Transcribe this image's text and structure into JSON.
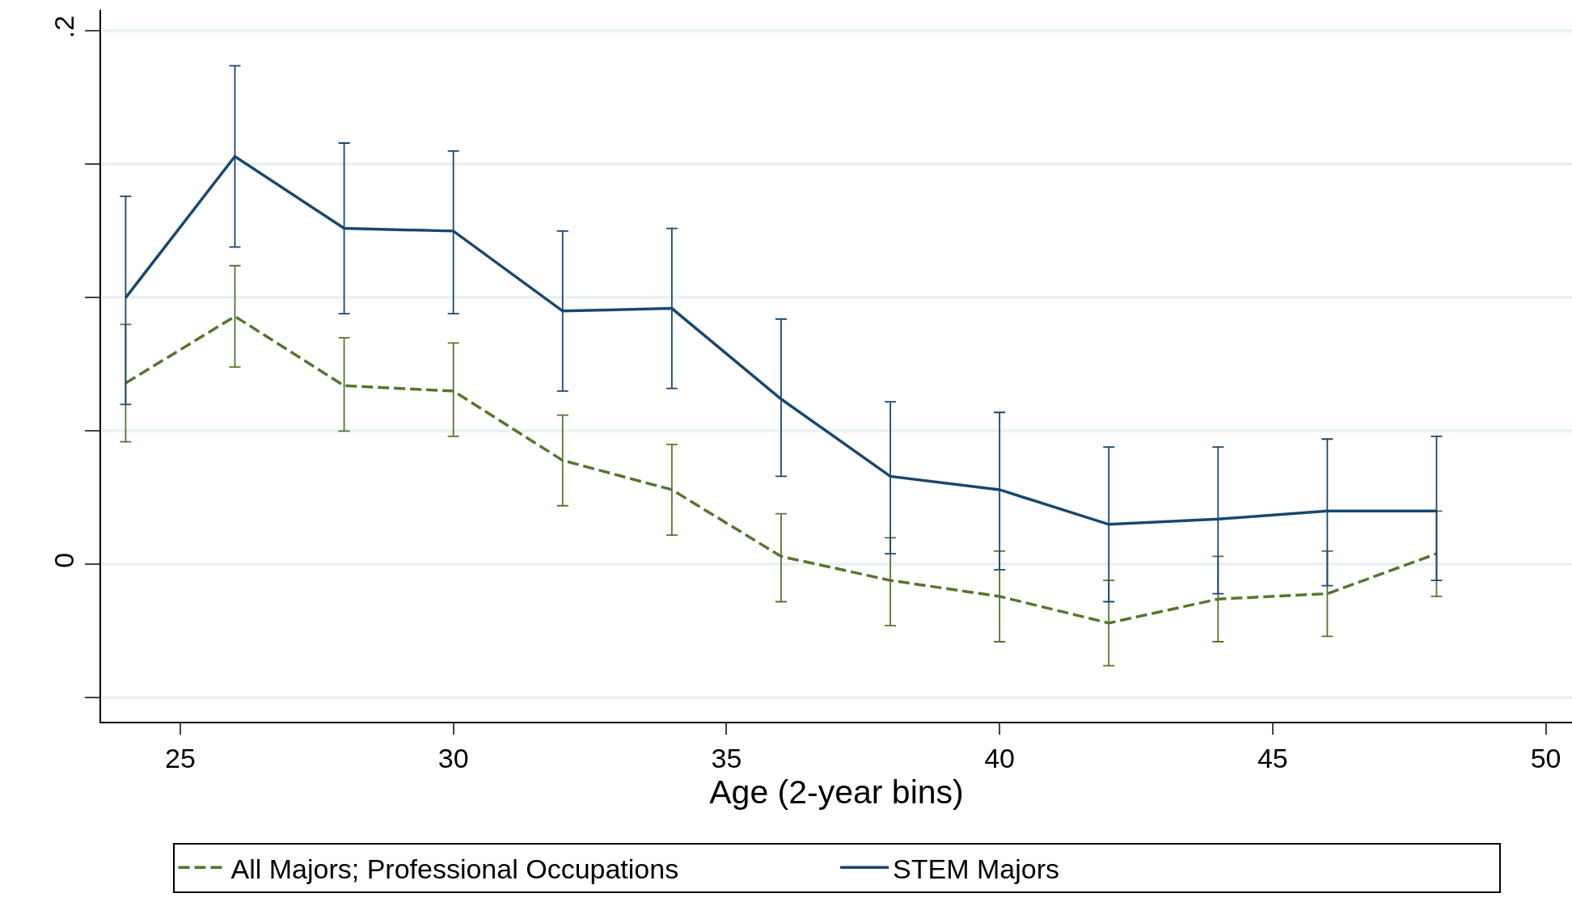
{
  "chart_data": {
    "type": "line",
    "xlabel": "Age (2-year bins)",
    "x": [
      24,
      26,
      28,
      30,
      32,
      34,
      36,
      38,
      40,
      42,
      44,
      46,
      48
    ],
    "series": [
      {
        "name": "All Majors; Professional Occupations",
        "color": "#55752f",
        "line_style": "dashed",
        "values": [
          0.068,
          0.093,
          0.067,
          0.065,
          0.039,
          0.028,
          0.003,
          -0.006,
          -0.012,
          -0.022,
          -0.013,
          -0.011,
          0.004
        ],
        "errors": [
          [
            0.046,
            0.09
          ],
          [
            0.074,
            0.112
          ],
          [
            0.05,
            0.085
          ],
          [
            0.048,
            0.083
          ],
          [
            0.022,
            0.056
          ],
          [
            0.011,
            0.045
          ],
          [
            -0.014,
            0.019
          ],
          [
            -0.023,
            0.01
          ],
          [
            -0.029,
            0.005
          ],
          [
            -0.038,
            -0.006
          ],
          [
            -0.029,
            0.003
          ],
          [
            -0.027,
            0.005
          ],
          [
            -0.012,
            0.02
          ]
        ]
      },
      {
        "name": "STEM Majors",
        "color": "#1a476f",
        "line_style": "solid",
        "values": [
          0.1,
          0.153,
          0.126,
          0.125,
          0.095,
          0.096,
          0.062,
          0.033,
          0.028,
          0.015,
          0.017,
          0.02,
          0.02
        ],
        "errors": [
          [
            0.06,
            0.138
          ],
          [
            0.119,
            0.187
          ],
          [
            0.094,
            0.158
          ],
          [
            0.094,
            0.155
          ],
          [
            0.065,
            0.125
          ],
          [
            0.066,
            0.126
          ],
          [
            0.033,
            0.092
          ],
          [
            0.004,
            0.061
          ],
          [
            -0.002,
            0.057
          ],
          [
            -0.014,
            0.044
          ],
          [
            -0.011,
            0.044
          ],
          [
            -0.008,
            0.047
          ],
          [
            -0.006,
            0.048
          ]
        ]
      }
    ],
    "xlim": [
      23.55,
      50.48
    ],
    "xticks": [
      25,
      30,
      35,
      40,
      45,
      50
    ],
    "ylim": [
      -0.059,
      0.208
    ],
    "yticks": [
      {
        "value": -0.05,
        "label": null
      },
      0,
      {
        "value": 0.05,
        "label": null
      },
      {
        "value": 0.1,
        "label": null
      },
      {
        "value": 0.15,
        "label": null
      },
      {
        "value": 0.2,
        "label": ".2"
      }
    ],
    "grid": "y",
    "legend": "bottom"
  }
}
